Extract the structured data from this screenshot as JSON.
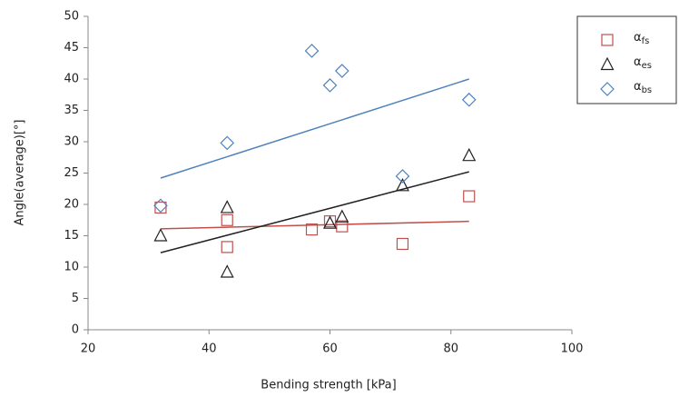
{
  "chart_data": {
    "type": "scatter",
    "x_label": "Bending strength [kPa]",
    "y_label": "Angle(average)[°]",
    "xlim": [
      20,
      100
    ],
    "xticks": [
      20,
      40,
      60,
      80,
      100
    ],
    "ylim": [
      0,
      50
    ],
    "yticks": [
      0,
      5,
      10,
      15,
      20,
      25,
      30,
      35,
      40,
      45,
      50
    ],
    "series": [
      {
        "name": "αfs",
        "color": "#c0504d",
        "marker": "square",
        "x": [
          32,
          43,
          43,
          57,
          60,
          62,
          72,
          83
        ],
        "values": [
          19.5,
          17.5,
          13.2,
          16,
          17.3,
          16.5,
          13.7,
          21.3
        ],
        "trend_x": [
          32,
          83
        ],
        "trend": [
          16.1,
          17.3
        ]
      },
      {
        "name": "αes",
        "color": "#222222",
        "marker": "triangle",
        "x": [
          32,
          43,
          43,
          60,
          62,
          72,
          83
        ],
        "values": [
          15,
          19.5,
          9.2,
          17,
          18,
          23,
          27.8
        ],
        "trend_x": [
          32,
          83
        ],
        "trend": [
          12.3,
          25.2
        ]
      },
      {
        "name": "αbs",
        "color": "#4f81bd",
        "marker": "diamond",
        "x": [
          32,
          43,
          57,
          60,
          62,
          72,
          83
        ],
        "values": [
          19.8,
          29.8,
          44.5,
          39,
          41.3,
          24.5,
          36.7
        ],
        "trend_x": [
          32,
          83
        ],
        "trend": [
          24.2,
          40
        ]
      }
    ]
  }
}
